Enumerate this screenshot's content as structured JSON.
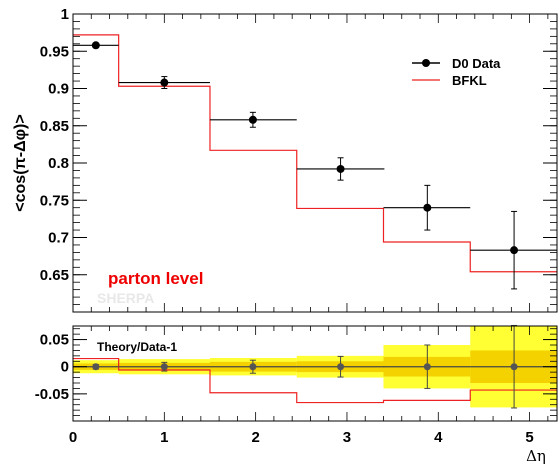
{
  "chart_data": [
    {
      "type": "scatter",
      "ylabel": "<cos(π-Δφ)>",
      "xlabel": "Δη",
      "xlim": [
        0,
        5.3
      ],
      "ylim": [
        0.6,
        1.0
      ],
      "x_ticks": [
        "0",
        "1",
        "2",
        "3",
        "4",
        "5"
      ],
      "y_ticks": [
        "0.65",
        "0.7",
        "0.75",
        "0.8",
        "0.85",
        "0.9",
        "0.95",
        "1"
      ],
      "legend": {
        "placement": "top-right",
        "entries": [
          "D0 Data",
          "BFKL"
        ]
      },
      "annotations": [
        "parton level",
        "SHERPA"
      ],
      "series": [
        {
          "name": "D0 Data",
          "color": "#000000",
          "x": [
            0.25,
            1.0,
            1.97,
            2.93,
            3.88,
            4.83
          ],
          "y": [
            0.958,
            0.908,
            0.858,
            0.792,
            0.74,
            0.683
          ],
          "xerr_low": [
            0.25,
            0.5,
            0.47,
            0.48,
            0.48,
            0.48
          ],
          "xerr_high": [
            0.25,
            0.5,
            0.48,
            0.48,
            0.47,
            0.47
          ],
          "yerr": [
            0.003,
            0.008,
            0.01,
            0.015,
            0.03,
            0.052
          ]
        },
        {
          "name": "BFKL",
          "color": "#ee2222",
          "bin_edges": [
            0,
            0.5,
            1.5,
            2.45,
            3.4,
            4.35,
            5.3
          ],
          "values": [
            0.972,
            0.903,
            0.817,
            0.739,
            0.694,
            0.654
          ]
        }
      ]
    },
    {
      "type": "scatter",
      "title": "Theory/Data-1",
      "xlabel": "Δη",
      "xlim": [
        0,
        5.3
      ],
      "ylim": [
        -0.1,
        0.075
      ],
      "y_ticks": [
        "-0.05",
        "0",
        "0.05"
      ],
      "series": [
        {
          "name": "Theory/Data-1",
          "color": "#ee2222",
          "bin_edges": [
            0,
            0.5,
            1.5,
            2.45,
            3.4,
            4.35,
            5.3
          ],
          "values": [
            0.015,
            -0.006,
            -0.048,
            -0.066,
            -0.062,
            -0.043
          ]
        }
      ],
      "points": {
        "x": [
          0.25,
          1.0,
          1.97,
          2.93,
          3.88,
          4.83
        ],
        "y": [
          0,
          0,
          0,
          0,
          0,
          0
        ],
        "yerr": [
          0.004,
          0.008,
          0.012,
          0.019,
          0.04,
          0.076
        ]
      },
      "bands": {
        "bin_edges": [
          0,
          0.5,
          1.5,
          2.45,
          3.4,
          4.35,
          5.3
        ],
        "inner": [
          0.006,
          0.007,
          0.009,
          0.01,
          0.018,
          0.03
        ],
        "outer": [
          0.012,
          0.014,
          0.016,
          0.02,
          0.04,
          0.075
        ],
        "inner_color": "#f3d200",
        "outer_color": "#ffff33"
      }
    }
  ]
}
